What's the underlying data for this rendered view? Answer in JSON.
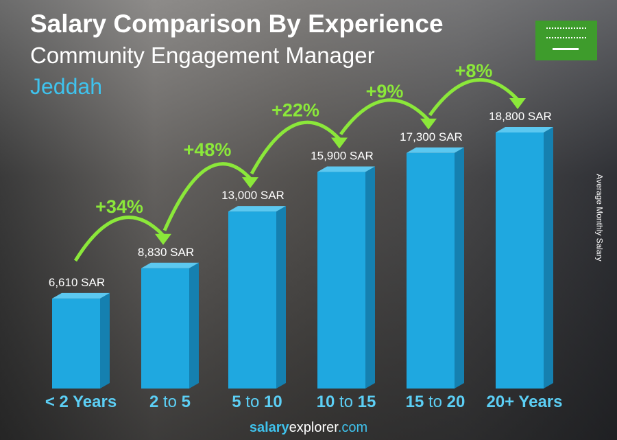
{
  "header": {
    "title": "Salary Comparison By Experience",
    "subtitle": "Community Engagement Manager",
    "city": "Jeddah"
  },
  "flag": {
    "country": "Saudi Arabia",
    "color": "#3e9c2c"
  },
  "footer": {
    "brand_bold": "salary",
    "brand_mid": "explorer",
    "brand_tld": ".com"
  },
  "chart_data": {
    "type": "bar",
    "ylabel": "Average Monthly Salary",
    "categories": [
      [
        "< 2 Years"
      ],
      [
        "2",
        "to",
        "5"
      ],
      [
        "5",
        "to",
        "10"
      ],
      [
        "10",
        "to",
        "15"
      ],
      [
        "15",
        "to",
        "20"
      ],
      [
        "20+ Years"
      ]
    ],
    "values": [
      6610,
      8830,
      13000,
      15900,
      17300,
      18800
    ],
    "value_labels": [
      "6,610 SAR",
      "8,830 SAR",
      "13,000 SAR",
      "15,900 SAR",
      "17,300 SAR",
      "18,800 SAR"
    ],
    "changes": [
      "+34%",
      "+48%",
      "+22%",
      "+9%",
      "+8%"
    ],
    "colors": {
      "bar": "#1fa8e0",
      "bar_side": "#1580b0",
      "bar_top": "#5cc8f0",
      "change": "#8be83a",
      "axis_label": "#5ccff5"
    }
  }
}
